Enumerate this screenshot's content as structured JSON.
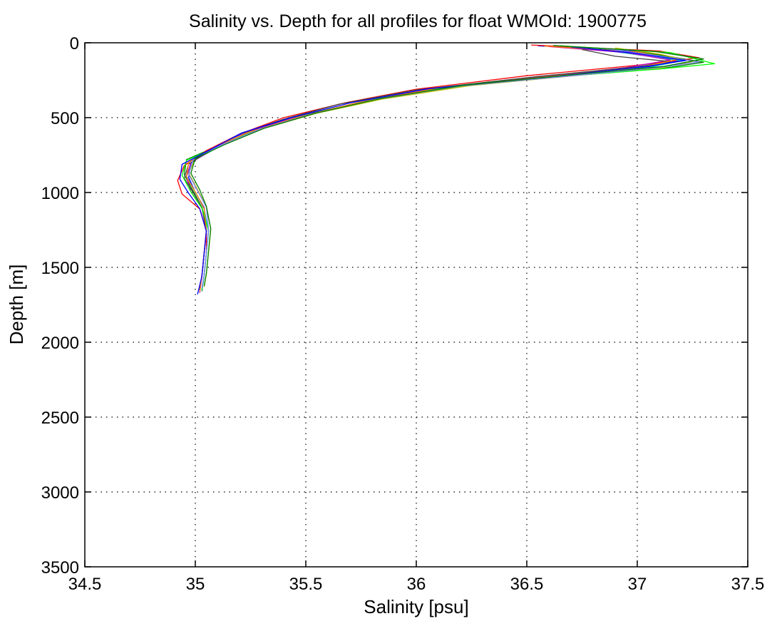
{
  "chart_data": {
    "type": "line",
    "title": "Salinity vs. Depth for all profiles for float WMOId: 1900775",
    "xlabel": "Salinity [psu]",
    "ylabel": "Depth [m]",
    "xlim": [
      34.5,
      37.5
    ],
    "ylim": [
      0,
      3500
    ],
    "y_reversed": true,
    "grid": true,
    "xticks": [
      34.5,
      35,
      35.5,
      36,
      36.5,
      37,
      37.5
    ],
    "xtick_labels": [
      "34.5",
      "35",
      "35.5",
      "36",
      "36.5",
      "37",
      "37.5"
    ],
    "yticks": [
      0,
      500,
      1000,
      1500,
      2000,
      2500,
      3000,
      3500
    ],
    "ytick_labels": [
      "0",
      "500",
      "1000",
      "1500",
      "2000",
      "2500",
      "3000",
      "3500"
    ],
    "series_colors": [
      "#0000ff",
      "#008000",
      "#ff0000",
      "#00bfbf",
      "#bf00bf",
      "#bfbf00",
      "#404040",
      "#00ff00",
      "#ff8000",
      "#8080ff"
    ],
    "series": [
      {
        "x": [
          36.55,
          37.02,
          37.22,
          37.05,
          36.6,
          36.1,
          35.75,
          35.45,
          35.22,
          35.08,
          34.98,
          34.97,
          35.0,
          35.04,
          35.05,
          35.04,
          35.03,
          35.02
        ],
        "y": [
          20,
          60,
          110,
          160,
          220,
          300,
          400,
          500,
          600,
          700,
          800,
          900,
          1000,
          1100,
          1250,
          1400,
          1550,
          1650
        ]
      },
      {
        "x": [
          36.7,
          37.05,
          37.3,
          37.12,
          36.7,
          36.2,
          35.8,
          35.5,
          35.28,
          35.1,
          34.96,
          34.95,
          34.99,
          35.03,
          35.06,
          35.05,
          35.04,
          35.03
        ],
        "y": [
          30,
          70,
          130,
          170,
          220,
          290,
          380,
          480,
          580,
          690,
          780,
          880,
          990,
          1100,
          1250,
          1400,
          1550,
          1660
        ]
      },
      {
        "x": [
          36.52,
          37.1,
          37.28,
          37.0,
          36.5,
          36.0,
          35.68,
          35.4,
          35.2,
          35.05,
          34.95,
          34.92,
          34.94,
          35.02,
          35.05,
          35.05,
          35.04,
          35.03
        ],
        "y": [
          15,
          55,
          100,
          150,
          220,
          310,
          400,
          500,
          610,
          720,
          820,
          920,
          1010,
          1110,
          1260,
          1400,
          1550,
          1640
        ]
      },
      {
        "x": [
          36.8,
          37.0,
          37.2,
          37.05,
          36.65,
          36.15,
          35.78,
          35.48,
          35.25,
          35.1,
          34.99,
          34.96,
          35.0,
          35.04,
          35.06,
          35.05,
          35.04,
          35.03
        ],
        "y": [
          40,
          80,
          120,
          165,
          225,
          300,
          390,
          490,
          590,
          700,
          790,
          890,
          1000,
          1110,
          1260,
          1410,
          1560,
          1650
        ]
      },
      {
        "x": [
          36.6,
          36.95,
          37.15,
          36.95,
          36.55,
          36.05,
          35.72,
          35.44,
          35.23,
          35.09,
          34.98,
          34.96,
          34.98,
          35.03,
          35.05,
          35.04,
          35.03,
          35.02
        ],
        "y": [
          25,
          65,
          115,
          165,
          230,
          310,
          405,
          505,
          600,
          705,
          800,
          895,
          995,
          1105,
          1255,
          1405,
          1555,
          1670
        ]
      },
      {
        "x": [
          36.9,
          37.1,
          37.25,
          37.1,
          36.75,
          36.25,
          35.85,
          35.55,
          35.3,
          35.12,
          35.0,
          34.97,
          35.01,
          35.05,
          35.07,
          35.06,
          35.05,
          35.04
        ],
        "y": [
          35,
          75,
          125,
          170,
          215,
          285,
          375,
          470,
          575,
          685,
          775,
          870,
          980,
          1095,
          1245,
          1395,
          1545,
          1630
        ]
      },
      {
        "x": [
          36.75,
          36.9,
          37.15,
          37.0,
          36.55,
          36.0,
          35.65,
          35.4,
          35.2,
          35.07,
          34.97,
          34.95,
          34.99,
          35.03,
          35.05,
          35.04,
          35.03,
          35.02
        ],
        "y": [
          45,
          90,
          125,
          160,
          225,
          315,
          410,
          510,
          610,
          715,
          810,
          905,
          1000,
          1100,
          1255,
          1400,
          1550,
          1655
        ]
      },
      {
        "x": [
          36.65,
          37.15,
          37.35,
          37.1,
          36.7,
          36.15,
          35.78,
          35.5,
          35.27,
          35.1,
          34.96,
          34.94,
          34.98,
          35.03,
          35.06,
          35.05,
          35.04,
          35.03
        ],
        "y": [
          20,
          65,
          140,
          175,
          220,
          295,
          385,
          485,
          585,
          695,
          785,
          885,
          995,
          1105,
          1255,
          1405,
          1555,
          1645
        ]
      },
      {
        "x": [
          36.58,
          37.0,
          37.18,
          37.02,
          36.62,
          36.1,
          35.74,
          35.46,
          35.24,
          35.08,
          34.97,
          34.96,
          35.0,
          35.04,
          35.05,
          35.04,
          35.03,
          35.02
        ],
        "y": [
          22,
          62,
          112,
          162,
          222,
          302,
          398,
          498,
          598,
          702,
          798,
          896,
          996,
          1106,
          1256,
          1406,
          1556,
          1662
        ]
      },
      {
        "x": [
          36.85,
          37.05,
          37.28,
          37.08,
          36.72,
          36.2,
          35.82,
          35.52,
          35.29,
          35.11,
          34.99,
          34.97,
          35.01,
          35.05,
          35.06,
          35.05,
          35.04,
          35.03
        ],
        "y": [
          38,
          78,
          128,
          168,
          218,
          288,
          378,
          478,
          578,
          688,
          778,
          878,
          988,
          1098,
          1248,
          1398,
          1548,
          1638
        ]
      },
      {
        "x": [
          36.7,
          36.98,
          37.22,
          37.04,
          36.6,
          36.05,
          35.7,
          35.43,
          35.21,
          35.07,
          34.94,
          34.93,
          34.97,
          35.02,
          35.05,
          35.04,
          35.03,
          35.01
        ],
        "y": [
          28,
          68,
          118,
          158,
          228,
          308,
          402,
          502,
          602,
          712,
          812,
          912,
          1005,
          1108,
          1258,
          1408,
          1558,
          1680
        ]
      },
      {
        "x": [
          36.62,
          37.08,
          37.3,
          37.12,
          36.72,
          36.22,
          35.84,
          35.54,
          35.31,
          35.13,
          35.0,
          34.98,
          35.02,
          35.05,
          35.07,
          35.06,
          35.05,
          35.04
        ],
        "y": [
          18,
          58,
          108,
          158,
          212,
          282,
          372,
          472,
          572,
          682,
          772,
          872,
          982,
          1092,
          1242,
          1392,
          1542,
          1625
        ]
      }
    ]
  }
}
